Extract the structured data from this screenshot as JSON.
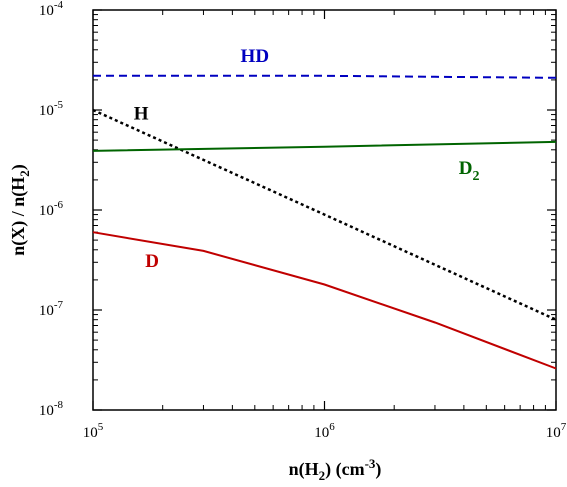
{
  "chart_data": {
    "type": "line",
    "title": "",
    "xlabel": {
      "main": "n(H",
      "sub": "2",
      "tail": ")  (cm",
      "sup": "-3",
      "close": ")"
    },
    "ylabel": {
      "main": "n(X) / n(H",
      "sub": "2",
      "close": ")"
    },
    "xscale": "log",
    "yscale": "log",
    "xlim": [
      100000,
      10000000
    ],
    "ylim": [
      1e-08,
      0.0001
    ],
    "grid": false,
    "x_ticks": [
      {
        "value": 100000,
        "base": "10",
        "exp": "5"
      },
      {
        "value": 1000000,
        "base": "10",
        "exp": "6"
      },
      {
        "value": 10000000,
        "base": "10",
        "exp": "7"
      }
    ],
    "y_ticks": [
      {
        "value": 1e-08,
        "base": "10",
        "exp": "-8"
      },
      {
        "value": 1e-07,
        "base": "10",
        "exp": "-7"
      },
      {
        "value": 1e-06,
        "base": "10",
        "exp": "-6"
      },
      {
        "value": 1e-05,
        "base": "10",
        "exp": "-5"
      },
      {
        "value": 0.0001,
        "base": "10",
        "exp": "-4"
      }
    ],
    "series": [
      {
        "name": "HD",
        "label_main": "HD",
        "label_sub": "",
        "color": "#0000c0",
        "style": "dashed",
        "x": [
          100000,
          300000,
          1000000,
          3000000,
          10000000
        ],
        "y": [
          2.2e-05,
          2.2e-05,
          2.2e-05,
          2.15e-05,
          2.1e-05
        ]
      },
      {
        "name": "H",
        "label_main": "H",
        "label_sub": "",
        "color": "#000000",
        "style": "dotted",
        "x": [
          100000,
          1000000,
          10000000
        ],
        "y": [
          1e-05,
          9e-07,
          8e-08
        ]
      },
      {
        "name": "D2",
        "label_main": "D",
        "label_sub": "2",
        "color": "#006400",
        "style": "solid",
        "x": [
          100000,
          1000000,
          10000000
        ],
        "y": [
          3.9e-06,
          4.3e-06,
          4.8e-06
        ]
      },
      {
        "name": "D",
        "label_main": "D",
        "label_sub": "",
        "color": "#c00000",
        "style": "solid",
        "x": [
          100000,
          300000,
          1000000,
          3000000,
          10000000
        ],
        "y": [
          6e-07,
          3.9e-07,
          1.8e-07,
          7.5e-08,
          2.6e-08
        ]
      }
    ]
  }
}
